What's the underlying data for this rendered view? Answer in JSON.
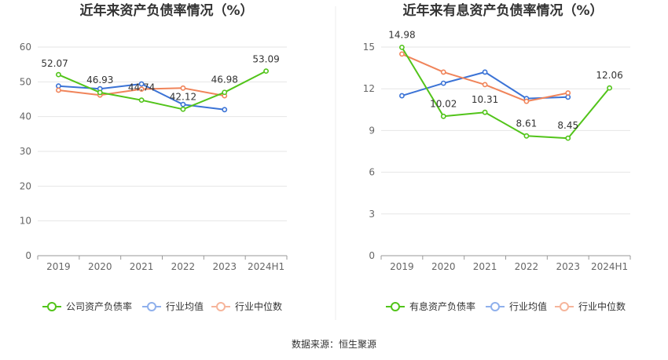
{
  "source_label": "数据来源：恒生聚源",
  "chart_data": [
    {
      "type": "line",
      "title": "近年来资产负债率情况（%）",
      "xlabel": "",
      "ylabel": "",
      "categories": [
        "2019",
        "2020",
        "2021",
        "2022",
        "2023",
        "2024H1"
      ],
      "ylim": [
        0,
        60
      ],
      "yticks": [
        0,
        10,
        20,
        30,
        40,
        50,
        60
      ],
      "grid": true,
      "legend_position": "bottom",
      "series": [
        {
          "name": "公司资产负债率",
          "color": "#52c41a",
          "values": [
            52.07,
            46.93,
            44.74,
            42.12,
            46.98,
            53.09
          ],
          "labels": [
            "52.07",
            "46.93",
            "44.74",
            "42.12",
            "46.98",
            "53.09"
          ]
        },
        {
          "name": "行业均值",
          "color": "#3b73d6",
          "values": [
            48.8,
            48.0,
            49.4,
            43.5,
            42.0,
            null
          ]
        },
        {
          "name": "行业中位数",
          "color": "#f0845a",
          "values": [
            47.6,
            46.2,
            47.9,
            48.2,
            46.0,
            null
          ]
        }
      ]
    },
    {
      "type": "line",
      "title": "近年来有息资产负债率情况（%）",
      "xlabel": "",
      "ylabel": "",
      "categories": [
        "2019",
        "2020",
        "2021",
        "2022",
        "2023",
        "2024H1"
      ],
      "ylim": [
        0,
        15
      ],
      "yticks": [
        0,
        3,
        6,
        9,
        12,
        15
      ],
      "grid": true,
      "legend_position": "bottom",
      "series": [
        {
          "name": "有息资产负债率",
          "color": "#52c41a",
          "values": [
            14.98,
            10.02,
            10.31,
            8.61,
            8.45,
            12.06
          ],
          "labels": [
            "14.98",
            "10.02",
            "10.31",
            "8.61",
            "8.45",
            "12.06"
          ]
        },
        {
          "name": "行业均值",
          "color": "#3b73d6",
          "values": [
            11.5,
            12.4,
            13.2,
            11.3,
            11.4,
            null
          ]
        },
        {
          "name": "行业中位数",
          "color": "#f0845a",
          "values": [
            14.5,
            13.2,
            12.3,
            11.1,
            11.7,
            null
          ]
        }
      ]
    }
  ]
}
